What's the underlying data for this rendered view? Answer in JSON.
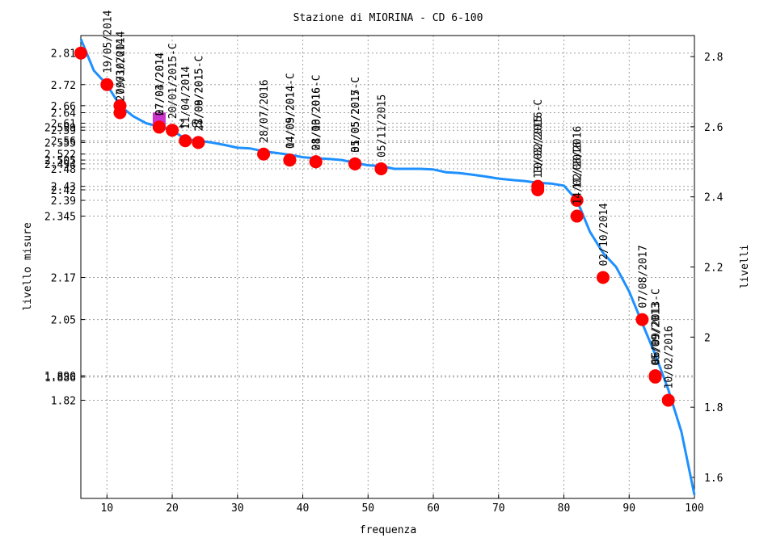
{
  "chart_data": {
    "type": "line",
    "title": "Stazione di MIORINA - CD 6-100",
    "xlabel": "frequenza",
    "ylabel_left": "livello misure",
    "ylabel_right": "livelli",
    "xlim": [
      6,
      100
    ],
    "ylim": [
      1.54,
      2.86
    ],
    "x_ticks": [
      10,
      20,
      30,
      40,
      50,
      60,
      70,
      80,
      90,
      100
    ],
    "right_ticks": [
      "1.6",
      "1.8",
      "2",
      "2.2",
      "2.4",
      "2.6",
      "2.8"
    ],
    "left_ticks": [
      "2.81",
      "2.72",
      "2.66",
      "2.64",
      "2.61",
      "2.599",
      "2.59",
      "2.56",
      "2.555",
      "2.522",
      "2.505",
      "2.494",
      "2.48",
      "2.43",
      "2.42",
      "2.39",
      "2.345",
      "2.17",
      "2.05",
      "1.890",
      "1.886",
      "1.82"
    ],
    "grid": true,
    "legend": "none",
    "colors": {
      "line": "#1e90ff",
      "point": "#ff0000",
      "special": "#cc33cc",
      "grid": "#a0a0a0"
    },
    "series": [
      {
        "x": [
          6,
          8,
          10,
          12,
          14,
          16,
          18,
          20,
          22,
          24,
          26,
          28,
          30,
          32,
          34,
          36,
          38,
          40,
          42,
          44,
          46,
          48,
          50,
          52,
          54,
          56,
          58,
          60,
          62,
          64,
          66,
          68,
          70,
          72,
          74,
          76,
          78,
          80,
          82,
          84,
          86,
          88,
          90,
          92,
          94,
          96,
          98,
          100
        ],
        "y": [
          2.85,
          2.76,
          2.72,
          2.66,
          2.63,
          2.61,
          2.6,
          2.59,
          2.565,
          2.56,
          2.555,
          2.548,
          2.54,
          2.538,
          2.53,
          2.525,
          2.52,
          2.513,
          2.51,
          2.508,
          2.505,
          2.497,
          2.49,
          2.488,
          2.48,
          2.48,
          2.48,
          2.478,
          2.47,
          2.468,
          2.463,
          2.458,
          2.452,
          2.448,
          2.445,
          2.44,
          2.438,
          2.432,
          2.39,
          2.3,
          2.24,
          2.2,
          2.13,
          2.04,
          1.95,
          1.85,
          1.73,
          1.55
        ]
      }
    ],
    "points": [
      {
        "x": 6,
        "y": 2.81,
        "label": ""
      },
      {
        "x": 10,
        "y": 2.72,
        "label": "19/05/2014"
      },
      {
        "x": 12,
        "y": 2.66,
        "label": "09/10/2014"
      },
      {
        "x": 12,
        "y": 2.64,
        "label": "27/03/2014"
      },
      {
        "x": 18,
        "y": 2.599,
        "label": "07/04/2014"
      },
      {
        "x": 18,
        "y": 2.599,
        "label": "27/03/2014"
      },
      {
        "x": 20,
        "y": 2.59,
        "label": "20/01/2015-C"
      },
      {
        "x": 22,
        "y": 2.56,
        "label": "11/04/2014"
      },
      {
        "x": 24,
        "y": 2.555,
        "label": "28/09/2015-C"
      },
      {
        "x": 24,
        "y": 2.555,
        "label": "27/08/2015"
      },
      {
        "x": 34,
        "y": 2.522,
        "label": "28/07/2016"
      },
      {
        "x": 38,
        "y": 2.505,
        "label": "04/09/2014-C"
      },
      {
        "x": 38,
        "y": 2.505,
        "label": "14/05/2014"
      },
      {
        "x": 42,
        "y": 2.5,
        "label": "08/10/2016-C"
      },
      {
        "x": 42,
        "y": 2.5,
        "label": "21/03/2016"
      },
      {
        "x": 48,
        "y": 2.494,
        "label": "05/05/2017-C"
      },
      {
        "x": 48,
        "y": 2.494,
        "label": "31/05/2015"
      },
      {
        "x": 52,
        "y": 2.48,
        "label": "05/11/2015"
      },
      {
        "x": 76,
        "y": 2.43,
        "label": "10/02/2016-C"
      },
      {
        "x": 76,
        "y": 2.42,
        "label": "13/03/2015"
      },
      {
        "x": 82,
        "y": 2.39,
        "label": "11/08/2016"
      },
      {
        "x": 82,
        "y": 2.345,
        "label": "14/02/2016"
      },
      {
        "x": 86,
        "y": 2.17,
        "label": "02/10/2014"
      },
      {
        "x": 92,
        "y": 2.05,
        "label": "07/08/2017"
      },
      {
        "x": 94,
        "y": 1.89,
        "label": "06/09/2013-C"
      },
      {
        "x": 94,
        "y": 1.886,
        "label": "05/09/2013"
      },
      {
        "x": 96,
        "y": 1.82,
        "label": "10/02/2016"
      }
    ],
    "annotations": [
      {
        "x": 20,
        "y": 2.61,
        "text": "2.61"
      }
    ]
  }
}
